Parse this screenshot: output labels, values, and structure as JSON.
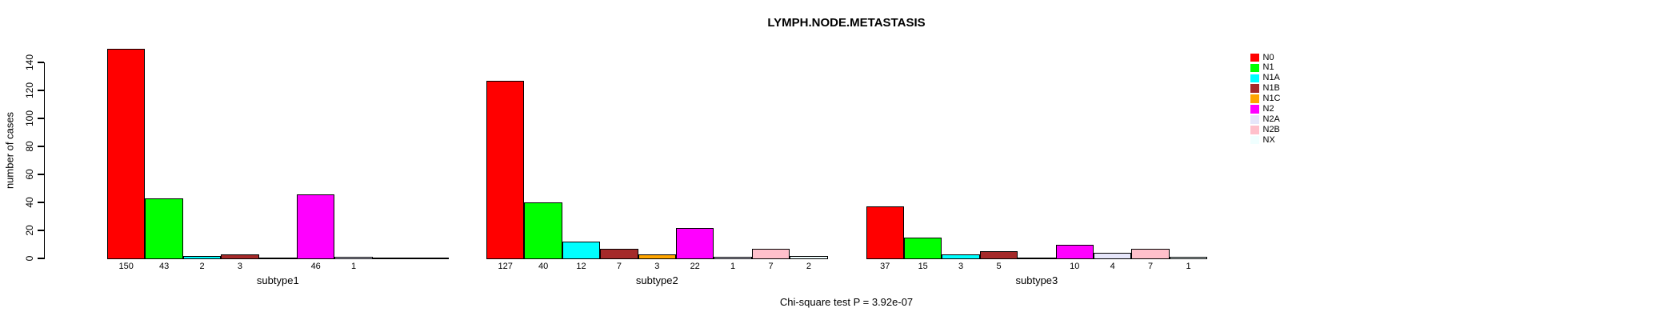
{
  "chart_data": {
    "type": "bar",
    "title": "LYMPH.NODE.METASTASIS",
    "xlabel": "",
    "ylabel": "number of cases",
    "ylim": [
      0,
      150
    ],
    "yticks": [
      0,
      20,
      40,
      60,
      80,
      100,
      120,
      140
    ],
    "grid": false,
    "legend_position": "right",
    "bar_value_labels_shown": true,
    "categories": [
      "subtype1",
      "subtype2",
      "subtype3"
    ],
    "series": [
      {
        "name": "N0",
        "color": "#FF0000",
        "values": [
          150,
          127,
          37
        ]
      },
      {
        "name": "N1",
        "color": "#00FF00",
        "values": [
          43,
          40,
          15
        ]
      },
      {
        "name": "N1A",
        "color": "#00FFFF",
        "values": [
          2,
          12,
          3
        ]
      },
      {
        "name": "N1B",
        "color": "#A52A2A",
        "values": [
          3,
          7,
          5
        ]
      },
      {
        "name": "N1C",
        "color": "#FFA500",
        "values": [
          0,
          3,
          0
        ]
      },
      {
        "name": "N2",
        "color": "#FF00FF",
        "values": [
          46,
          22,
          10
        ]
      },
      {
        "name": "N2A",
        "color": "#E6E6FA",
        "values": [
          1,
          1,
          4
        ]
      },
      {
        "name": "N2B",
        "color": "#FFC0CB",
        "values": [
          0,
          7,
          7
        ]
      },
      {
        "name": "NX",
        "color": "#F0FFFF",
        "values": [
          0,
          2,
          1
        ]
      }
    ],
    "annotation": "Chi-square test P = 3.92e-07"
  },
  "colors": {
    "foreground": "#000000",
    "background": "#FFFFFF"
  }
}
